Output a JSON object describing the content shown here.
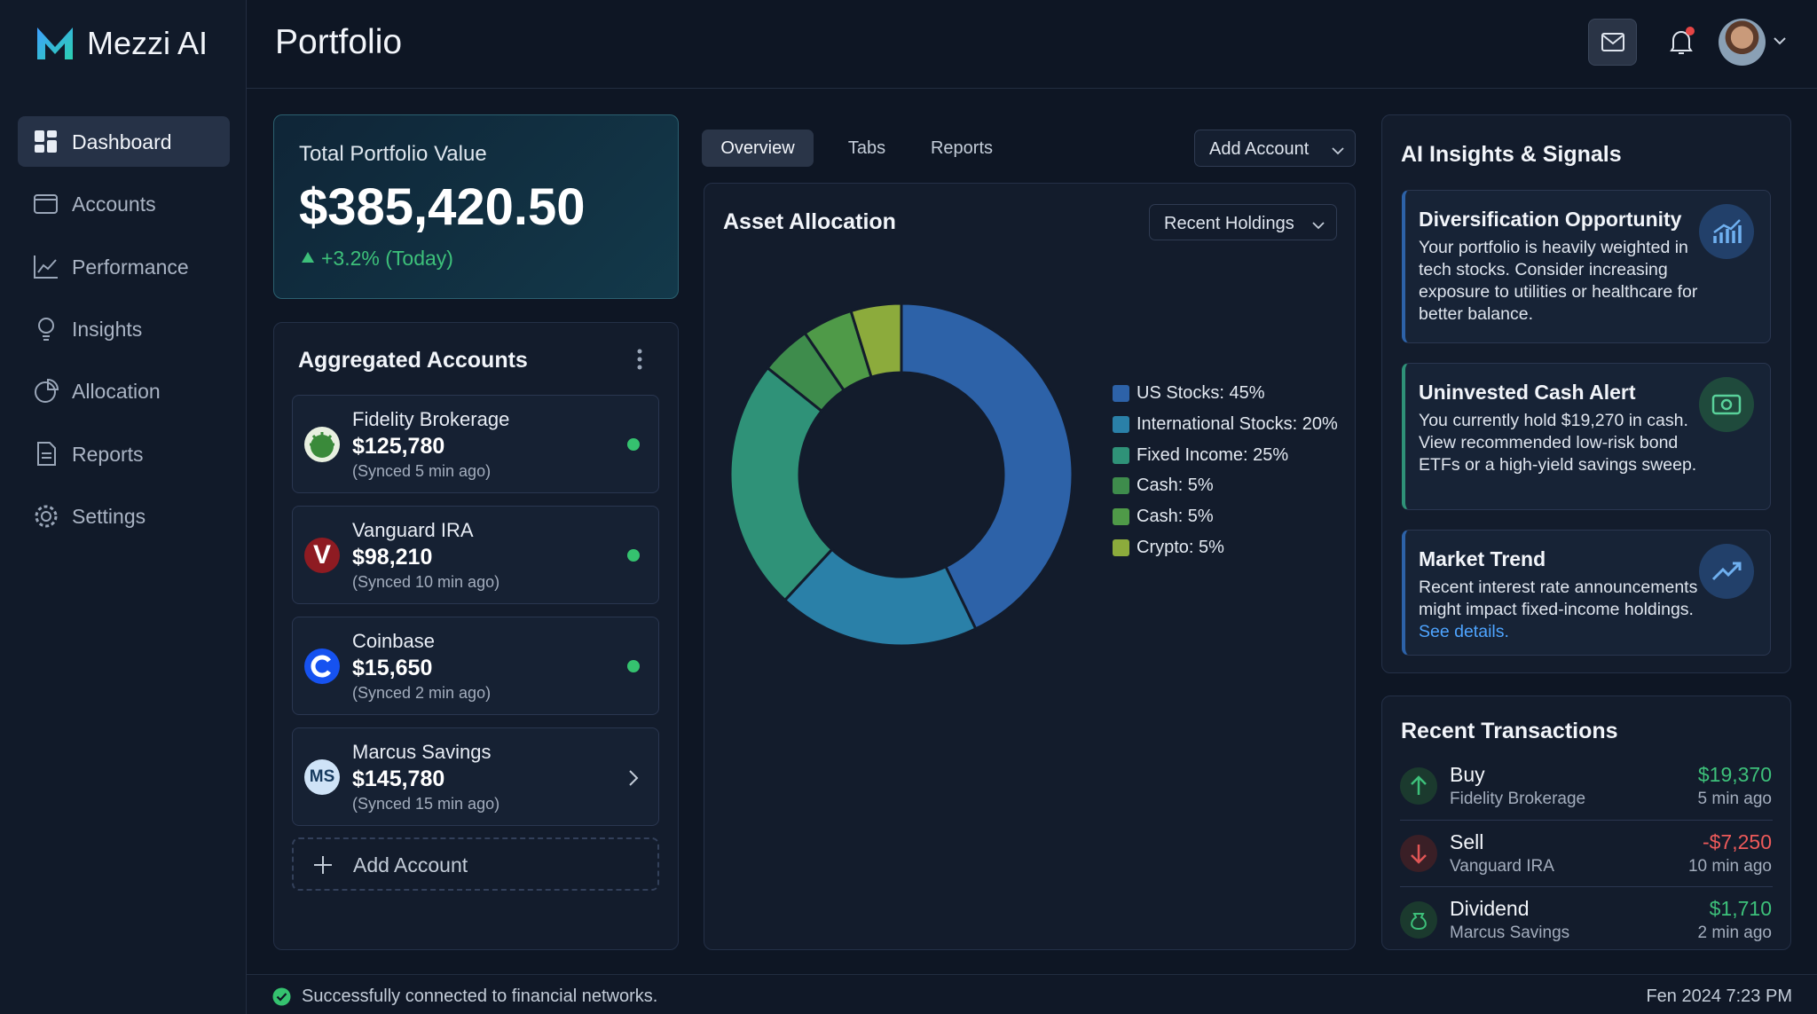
{
  "sidebar": {
    "brand": "Mezzi AI",
    "nav": [
      "Dashboard",
      "Accounts",
      "Performance",
      "Insights",
      "Allocation",
      "Reports",
      "Settings"
    ]
  },
  "header": {
    "title": "Portfolio"
  },
  "portfolio_value": {
    "label": "Total Portfolio Value",
    "value": "$385,420.50",
    "change": "+3.2% (Today)"
  },
  "accounts": {
    "title": "Aggregated Accounts",
    "items": [
      {
        "name": "Fidelity Brokerage",
        "value": "$125,780",
        "synced": "(Synced 5 min ago)"
      },
      {
        "name": "Vanguard IRA",
        "value": "$98,210",
        "synced": "(Synced 10 min ago)",
        "icon_text": "V"
      },
      {
        "name": "Coinbase",
        "value": "$15,650",
        "synced": "(Synced 2 min ago)"
      },
      {
        "name": "Marcus Savings",
        "value": "$145,780",
        "synced": "(Synced 15 min ago)",
        "icon_text": "MS"
      }
    ],
    "add": "Add Account"
  },
  "tabs": [
    "Overview",
    "Tabs",
    "Reports"
  ],
  "add_account_button": "Add Account",
  "chart_data": {
    "type": "pie",
    "donut": true,
    "title": "Asset Allocation",
    "dropdown": "Recent Holdings",
    "categories": [
      "US Stocks: 45%",
      "International Stocks: 20%",
      "Fixed Income: 25%",
      "Cash: 5%",
      "Cash: 5%",
      "Crypto: 5%"
    ],
    "values": [
      45,
      20,
      25,
      5,
      5,
      5
    ],
    "colors": [
      "#2d62a8",
      "#2a80a8",
      "#2f9278",
      "#3e8c4c",
      "#4f9a48",
      "#8cab3c"
    ]
  },
  "insights": {
    "title": "AI Insights & Signals",
    "items": [
      {
        "title": "Diversification Opportunity",
        "body": "Your portfolio is heavily weighted in tech stocks. Consider increasing exposure to utilities or healthcare for better balance."
      },
      {
        "title": "Uninvested Cash Alert",
        "body": "You currently hold $19,270 in cash. View recommended low-risk bond ETFs or a high-yield savings sweep."
      },
      {
        "title": "Market Trend",
        "body": "Recent interest rate announcements might impact fixed-income holdings.",
        "link": "See details."
      }
    ]
  },
  "transactions": {
    "title": "Recent Transactions",
    "items": [
      {
        "type": "Buy",
        "account": "Fidelity Brokerage",
        "amount": "$19,370",
        "time": "5 min ago"
      },
      {
        "type": "Sell",
        "account": "Vanguard IRA",
        "amount": "-$7,250",
        "time": "10 min ago"
      },
      {
        "type": "Dividend",
        "account": "Marcus Savings",
        "amount": "$1,710",
        "time": "2 min ago"
      }
    ]
  },
  "footer": {
    "status": "Successfully connected to financial networks.",
    "datetime": "Fen 2024 7:23 PM"
  }
}
